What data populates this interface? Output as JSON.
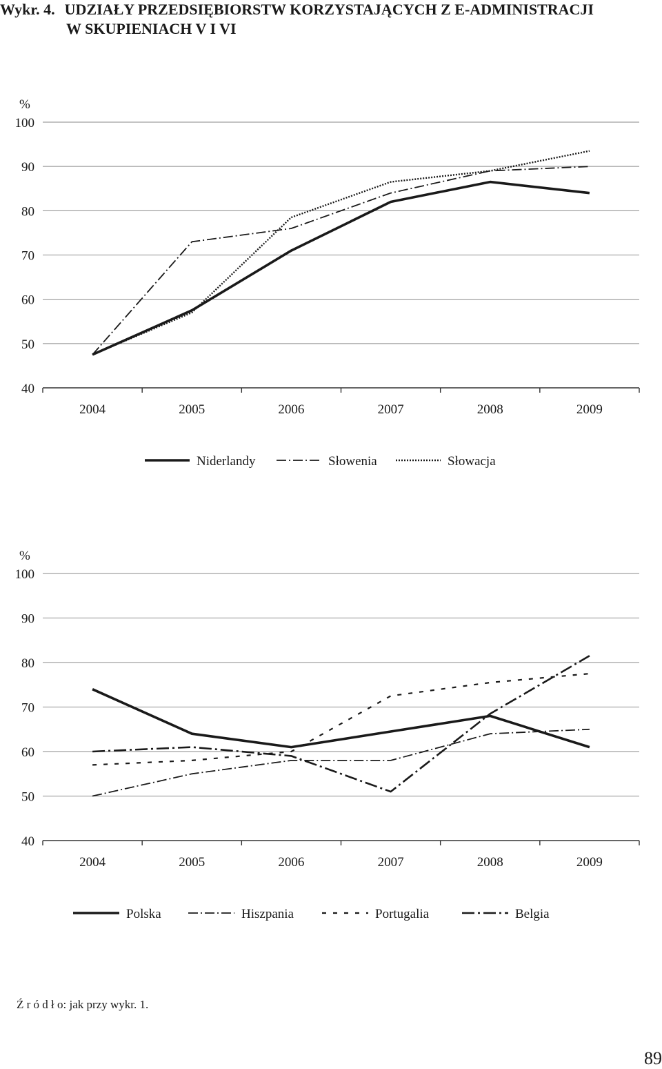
{
  "figure": {
    "label": "Wykr. 4.",
    "title_line1": "UDZIAŁY PRZEDSIĘBIORSTW KORZYSTAJĄCYCH Z E-ADMINISTRACJI",
    "title_line2": "W SKUPIENIACH V I VI"
  },
  "source": "Ź r ó d ł o: jak przy wykr. 1.",
  "page_number": "89",
  "chart_data": [
    {
      "type": "line",
      "unit": "%",
      "ylim": [
        40,
        100
      ],
      "yticks": [
        40,
        50,
        60,
        70,
        80,
        90,
        100
      ],
      "categories": [
        "2004",
        "2005",
        "2006",
        "2007",
        "2008",
        "2009"
      ],
      "grid": true,
      "legend_position": "bottom",
      "series": [
        {
          "name": "Niderlandy",
          "style": "solid",
          "values": [
            47.5,
            57.5,
            71,
            82,
            86.5,
            84
          ]
        },
        {
          "name": "Słowenia",
          "style": "dashdot",
          "values": [
            47.5,
            73,
            76,
            84,
            89,
            90
          ]
        },
        {
          "name": "Słowacja",
          "style": "dotted",
          "values": [
            47.5,
            57,
            78.5,
            86.5,
            89,
            93.5
          ]
        }
      ]
    },
    {
      "type": "line",
      "unit": "%",
      "ylim": [
        40,
        100
      ],
      "yticks": [
        40,
        50,
        60,
        70,
        80,
        90,
        100
      ],
      "categories": [
        "2004",
        "2005",
        "2006",
        "2007",
        "2008",
        "2009"
      ],
      "grid": true,
      "legend_position": "bottom",
      "series": [
        {
          "name": "Polska",
          "style": "solid",
          "values": [
            74,
            64,
            61,
            64.5,
            68,
            61
          ]
        },
        {
          "name": "Hiszpania",
          "style": "dashdot",
          "values": [
            50,
            55,
            58,
            58,
            64,
            65
          ]
        },
        {
          "name": "Portugalia",
          "style": "dashed",
          "values": [
            57,
            58,
            60,
            72.5,
            75.5,
            77.5
          ]
        },
        {
          "name": "Belgia",
          "style": "dashdotlong",
          "values": [
            60,
            61,
            59,
            51,
            68.5,
            81.5
          ]
        }
      ]
    }
  ]
}
